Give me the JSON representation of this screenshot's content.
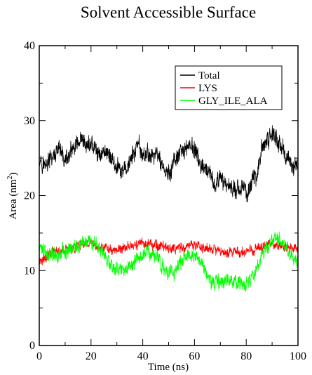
{
  "chart_data": {
    "type": "line",
    "title": "Solvent Accessible Surface",
    "xlabel": "Time (ns)",
    "ylabel_main": "Area (nm",
    "ylabel_sup": "2",
    "ylabel_tail": ")",
    "xlim": [
      0,
      100
    ],
    "ylim": [
      0,
      40
    ],
    "xticks": [
      0,
      20,
      40,
      60,
      80,
      100
    ],
    "yticks": [
      0,
      10,
      20,
      30,
      40
    ],
    "grid": false,
    "legend_position": "top-right",
    "series": [
      {
        "name": "Total",
        "color": "#000000",
        "noise": 1.1,
        "x": [
          0,
          2,
          5,
          8,
          10,
          13,
          16,
          18,
          20,
          23,
          26,
          28,
          30,
          32,
          35,
          38,
          40,
          43,
          46,
          48,
          50,
          52,
          55,
          58,
          60,
          62,
          64,
          66,
          68,
          70,
          73,
          76,
          78,
          80,
          82,
          84,
          86,
          88,
          90,
          92,
          94,
          96,
          98,
          100
        ],
        "y": [
          25.5,
          24,
          25,
          26,
          24.5,
          26,
          27,
          26.5,
          27,
          25.5,
          26,
          25,
          23.5,
          23,
          24.5,
          26.5,
          25.5,
          25.5,
          25.5,
          23.5,
          22.5,
          24.5,
          25.5,
          27,
          26,
          24.5,
          23,
          22.5,
          21.5,
          22,
          21.5,
          21,
          21,
          20.5,
          21.5,
          23,
          26,
          27,
          28.5,
          27.5,
          26,
          25,
          24,
          24
        ]
      },
      {
        "name": "LYS",
        "color": "#ff0000",
        "noise": 0.6,
        "x": [
          0,
          2,
          5,
          8,
          10,
          13,
          16,
          20,
          25,
          30,
          33,
          36,
          40,
          45,
          50,
          55,
          60,
          65,
          70,
          75,
          80,
          85,
          88,
          92,
          96,
          100
        ],
        "y": [
          11,
          11.5,
          12.5,
          12.5,
          13,
          13,
          13.5,
          13.5,
          13,
          12.5,
          13,
          13.5,
          13.5,
          13.5,
          13,
          13,
          13.5,
          13,
          12.5,
          12.5,
          12.5,
          13,
          13.5,
          13.5,
          13,
          13
        ]
      },
      {
        "name": "GLY_ILE_ALA",
        "color": "#00ff00",
        "noise": 0.9,
        "x": [
          0,
          3,
          6,
          9,
          12,
          15,
          18,
          21,
          24,
          27,
          30,
          33,
          36,
          39,
          42,
          45,
          47,
          49,
          52,
          55,
          58,
          60,
          63,
          65,
          68,
          71,
          74,
          77,
          80,
          83,
          86,
          89,
          92,
          95,
          98,
          100
        ],
        "y": [
          13,
          12.5,
          12,
          12.5,
          13,
          13.5,
          14,
          13.5,
          12.5,
          11,
          10.5,
          10,
          11,
          12,
          12.5,
          12,
          11,
          9.5,
          10,
          11.5,
          12.5,
          12,
          11,
          9,
          8.5,
          8.5,
          8.5,
          8.5,
          8,
          9.5,
          12,
          13.5,
          14.5,
          13,
          11.5,
          11
        ]
      }
    ]
  }
}
